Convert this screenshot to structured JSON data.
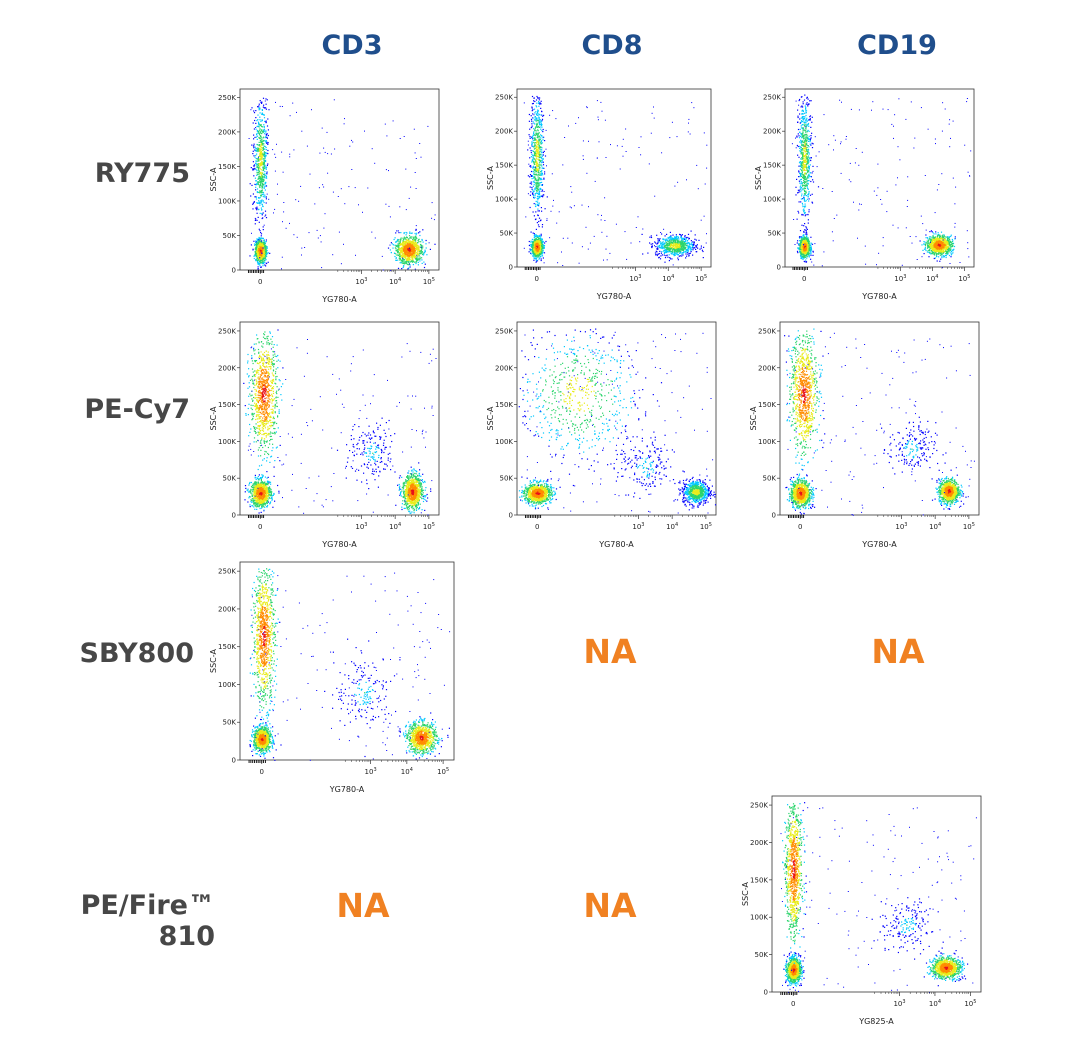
{
  "columns": [
    "CD3",
    "CD8",
    "CD19"
  ],
  "rows": [
    "RY775",
    "PE-Cy7",
    "SBY800",
    "PE/Fire™ 810"
  ],
  "na_text": "NA",
  "colors": {
    "header": "#1f4e8c",
    "row_label": "#474747",
    "na": "#f08122",
    "density": [
      "#0000ff",
      "#00c8ff",
      "#2ad46b",
      "#e8ec1a",
      "#ff8c00",
      "#e8101a"
    ]
  },
  "chart_data": [
    {
      "type": "scatter",
      "panel": "CD3 / RY775",
      "xlabel": "YG780-A",
      "ylabel": "SSC-A",
      "y_ticks": [
        "0",
        "50K",
        "100K",
        "150K",
        "200K",
        "250K"
      ],
      "ylim": [
        0,
        262144
      ],
      "x_ticks": [
        "0",
        "10^3",
        "10^4",
        "10^5"
      ],
      "populations": [
        {
          "name": "",
          "x_center": 0,
          "y_center": 28000,
          "x_spread": 0.08,
          "y_spread": 8000,
          "density": "high"
        },
        {
          "name": "",
          "x_center": 0,
          "y_center": 160000,
          "x_spread": 0.1,
          "y_spread": 45000,
          "density": "medium"
        },
        {
          "name": "",
          "x_center": 4.4,
          "y_center": 30000,
          "x_spread": 0.2,
          "y_spread": 10000,
          "density": "high"
        }
      ]
    },
    {
      "type": "scatter",
      "panel": "CD8 / RY775",
      "xlabel": "YG780-A",
      "ylabel": "SSC-A",
      "y_ticks": [
        "0",
        "50K",
        "100K",
        "150K",
        "200K",
        "250K"
      ],
      "ylim": [
        0,
        262144
      ],
      "x_ticks": [
        "0",
        "10^3",
        "10^4",
        "10^5"
      ],
      "populations": [
        {
          "name": "",
          "x_center": 0,
          "y_center": 30000,
          "x_spread": 0.08,
          "y_spread": 7000,
          "density": "high"
        },
        {
          "name": "",
          "x_center": 0,
          "y_center": 165000,
          "x_spread": 0.1,
          "y_spread": 45000,
          "density": "medium"
        },
        {
          "name": "",
          "x_center": 4.2,
          "y_center": 32000,
          "x_spread": 0.3,
          "y_spread": 8000,
          "density": "medium"
        }
      ]
    },
    {
      "type": "scatter",
      "panel": "CD19 / RY775",
      "xlabel": "YG780-A",
      "ylabel": "SSC-A",
      "y_ticks": [
        "0",
        "50K",
        "100K",
        "150K",
        "200K",
        "250K"
      ],
      "ylim": [
        0,
        262144
      ],
      "x_ticks": [
        "0",
        "10^3",
        "10^4",
        "10^5"
      ],
      "populations": [
        {
          "name": "",
          "x_center": 0,
          "y_center": 30000,
          "x_spread": 0.08,
          "y_spread": 7000,
          "density": "high"
        },
        {
          "name": "",
          "x_center": 0,
          "y_center": 160000,
          "x_spread": 0.1,
          "y_spread": 45000,
          "density": "medium"
        },
        {
          "name": "",
          "x_center": 4.2,
          "y_center": 33000,
          "x_spread": 0.2,
          "y_spread": 7000,
          "density": "high"
        }
      ]
    },
    {
      "type": "scatter",
      "panel": "CD3 / PE-Cy7",
      "xlabel": "YG780-A",
      "ylabel": "SSC-A",
      "y_ticks": [
        "0",
        "50K",
        "100K",
        "150K",
        "200K",
        "250K"
      ],
      "ylim": [
        0,
        262144
      ],
      "x_ticks": [
        "0",
        "10^3",
        "10^4",
        "10^5"
      ],
      "populations": [
        {
          "name": "",
          "x_center": 0,
          "y_center": 30000,
          "x_spread": 0.15,
          "y_spread": 9000,
          "density": "high"
        },
        {
          "name": "",
          "x_center": 0.1,
          "y_center": 165000,
          "x_spread": 0.2,
          "y_spread": 40000,
          "density": "high"
        },
        {
          "name": "",
          "x_center": 3.3,
          "y_center": 85000,
          "x_spread": 0.35,
          "y_spread": 20000,
          "density": "low"
        },
        {
          "name": "",
          "x_center": 4.5,
          "y_center": 32000,
          "x_spread": 0.15,
          "y_spread": 12000,
          "density": "high"
        }
      ]
    },
    {
      "type": "scatter",
      "panel": "CD8 / PE-Cy7",
      "xlabel": "YG780-A",
      "ylabel": "SSC-A",
      "y_ticks": [
        "0",
        "50K",
        "100K",
        "150K",
        "200K",
        "250K"
      ],
      "ylim": [
        0,
        262144
      ],
      "x_ticks": [
        "0",
        "10^3",
        "10^4",
        "10^5"
      ],
      "populations": [
        {
          "name": "",
          "x_center": 0,
          "y_center": 30000,
          "x_spread": 0.2,
          "y_spread": 7000,
          "density": "high"
        },
        {
          "name": "",
          "x_center": 1.2,
          "y_center": 165000,
          "x_spread": 0.9,
          "y_spread": 45000,
          "density": "medium"
        },
        {
          "name": "",
          "x_center": 3.2,
          "y_center": 65000,
          "x_spread": 0.4,
          "y_spread": 20000,
          "density": "low"
        },
        {
          "name": "",
          "x_center": 4.7,
          "y_center": 32000,
          "x_spread": 0.2,
          "y_spread": 8000,
          "density": "medium"
        }
      ]
    },
    {
      "type": "scatter",
      "panel": "CD19 / PE-Cy7",
      "xlabel": "YG780-A",
      "ylabel": "SSC-A",
      "y_ticks": [
        "0",
        "50K",
        "100K",
        "150K",
        "200K",
        "250K"
      ],
      "ylim": [
        0,
        262144
      ],
      "x_ticks": [
        "0",
        "10^3",
        "10^4",
        "10^5"
      ],
      "populations": [
        {
          "name": "",
          "x_center": 0,
          "y_center": 30000,
          "x_spread": 0.15,
          "y_spread": 9000,
          "density": "high"
        },
        {
          "name": "",
          "x_center": 0.1,
          "y_center": 165000,
          "x_spread": 0.2,
          "y_spread": 40000,
          "density": "high"
        },
        {
          "name": "",
          "x_center": 3.3,
          "y_center": 90000,
          "x_spread": 0.35,
          "y_spread": 18000,
          "density": "low"
        },
        {
          "name": "",
          "x_center": 4.4,
          "y_center": 33000,
          "x_spread": 0.15,
          "y_spread": 8000,
          "density": "high"
        }
      ]
    },
    {
      "type": "scatter",
      "panel": "CD3 / SBY800",
      "xlabel": "YG780-A",
      "ylabel": "SSC-A",
      "y_ticks": [
        "0",
        "50K",
        "100K",
        "150K",
        "200K",
        "250K"
      ],
      "ylim": [
        0,
        262144
      ],
      "x_ticks": [
        "0",
        "10^3",
        "10^4",
        "10^5"
      ],
      "populations": [
        {
          "name": "",
          "x_center": 0,
          "y_center": 28000,
          "x_spread": 0.12,
          "y_spread": 8000,
          "density": "high"
        },
        {
          "name": "",
          "x_center": 0.05,
          "y_center": 165000,
          "x_spread": 0.15,
          "y_spread": 45000,
          "density": "high"
        },
        {
          "name": "",
          "x_center": 2.8,
          "y_center": 90000,
          "x_spread": 0.4,
          "y_spread": 25000,
          "density": "low"
        },
        {
          "name": "",
          "x_center": 4.4,
          "y_center": 30000,
          "x_spread": 0.2,
          "y_spread": 10000,
          "density": "high"
        }
      ]
    },
    {
      "type": "scatter",
      "panel": "CD19 / PE/Fire™ 810",
      "xlabel": "YG825-A",
      "ylabel": "SSC-A",
      "y_ticks": [
        "0",
        "50K",
        "100K",
        "150K",
        "200K",
        "250K"
      ],
      "ylim": [
        0,
        262144
      ],
      "x_ticks": [
        "0",
        "10^3",
        "10^4",
        "10^5"
      ],
      "populations": [
        {
          "name": "",
          "x_center": 0,
          "y_center": 30000,
          "x_spread": 0.1,
          "y_spread": 8000,
          "density": "high"
        },
        {
          "name": "",
          "x_center": 0,
          "y_center": 165000,
          "x_spread": 0.12,
          "y_spread": 45000,
          "density": "high"
        },
        {
          "name": "",
          "x_center": 3.2,
          "y_center": 90000,
          "x_spread": 0.35,
          "y_spread": 18000,
          "density": "low"
        },
        {
          "name": "",
          "x_center": 4.3,
          "y_center": 33000,
          "x_spread": 0.2,
          "y_spread": 7000,
          "density": "high"
        }
      ]
    }
  ]
}
